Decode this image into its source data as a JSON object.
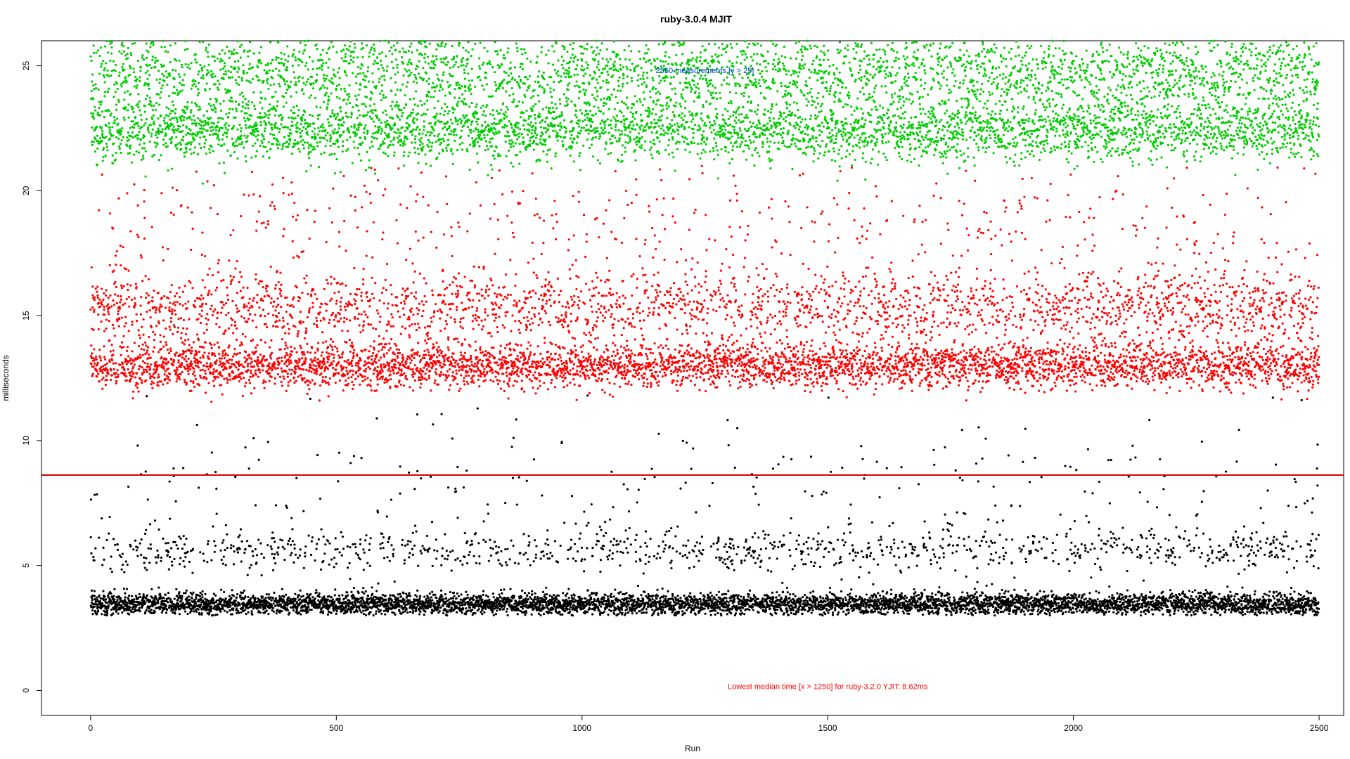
{
  "chart_data": {
    "type": "scatter",
    "title": "ruby-3.0.4 MJIT",
    "xlabel": "Run",
    "ylabel": "milliseconds",
    "xlim": [
      -100,
      2550
    ],
    "ylim": [
      -1,
      26
    ],
    "x_ticks": [
      0,
      500,
      1000,
      1500,
      2000,
      2500
    ],
    "y_ticks": [
      0,
      5,
      10,
      15,
      20,
      25
    ],
    "grid": false,
    "n_runs": 2500,
    "series": [
      {
        "color": "#00cc00",
        "y_clusters": [
          {
            "center": 22.4,
            "spread": 0.6,
            "share": 0.5
          },
          {
            "center": 24.8,
            "spread": 1.0,
            "share": 0.5
          }
        ],
        "y_range": [
          19.8,
          26.0
        ]
      },
      {
        "color": "#ff0000",
        "y_clusters": [
          {
            "center": 13.0,
            "spread": 0.45,
            "share": 0.62
          },
          {
            "center": 15.3,
            "spread": 0.7,
            "share": 0.3
          },
          {
            "center": 18.5,
            "spread": 1.6,
            "share": 0.08
          }
        ],
        "y_range": [
          11.5,
          21.0
        ]
      },
      {
        "color": "#000000",
        "y_clusters": [
          {
            "center": 3.45,
            "spread": 0.22,
            "share": 0.83
          },
          {
            "center": 5.6,
            "spread": 0.4,
            "share": 0.13
          },
          {
            "center": 8.0,
            "spread": 1.5,
            "share": 0.04
          }
        ],
        "y_range": [
          3.0,
          12.2
        ]
      }
    ],
    "hline": {
      "y": 8.62,
      "color": "#dd0000"
    },
    "annotations": [
      {
        "text": "2550 measurements [y > 25]",
        "x": 1250,
        "y": 24.7,
        "color": "#0033cc"
      },
      {
        "text": "Lowest median time [x > 1250] for ruby-3.2.0 YJIT: 8.62ms",
        "x": 1500,
        "y": 0.05,
        "color": "#ff0000"
      }
    ]
  }
}
